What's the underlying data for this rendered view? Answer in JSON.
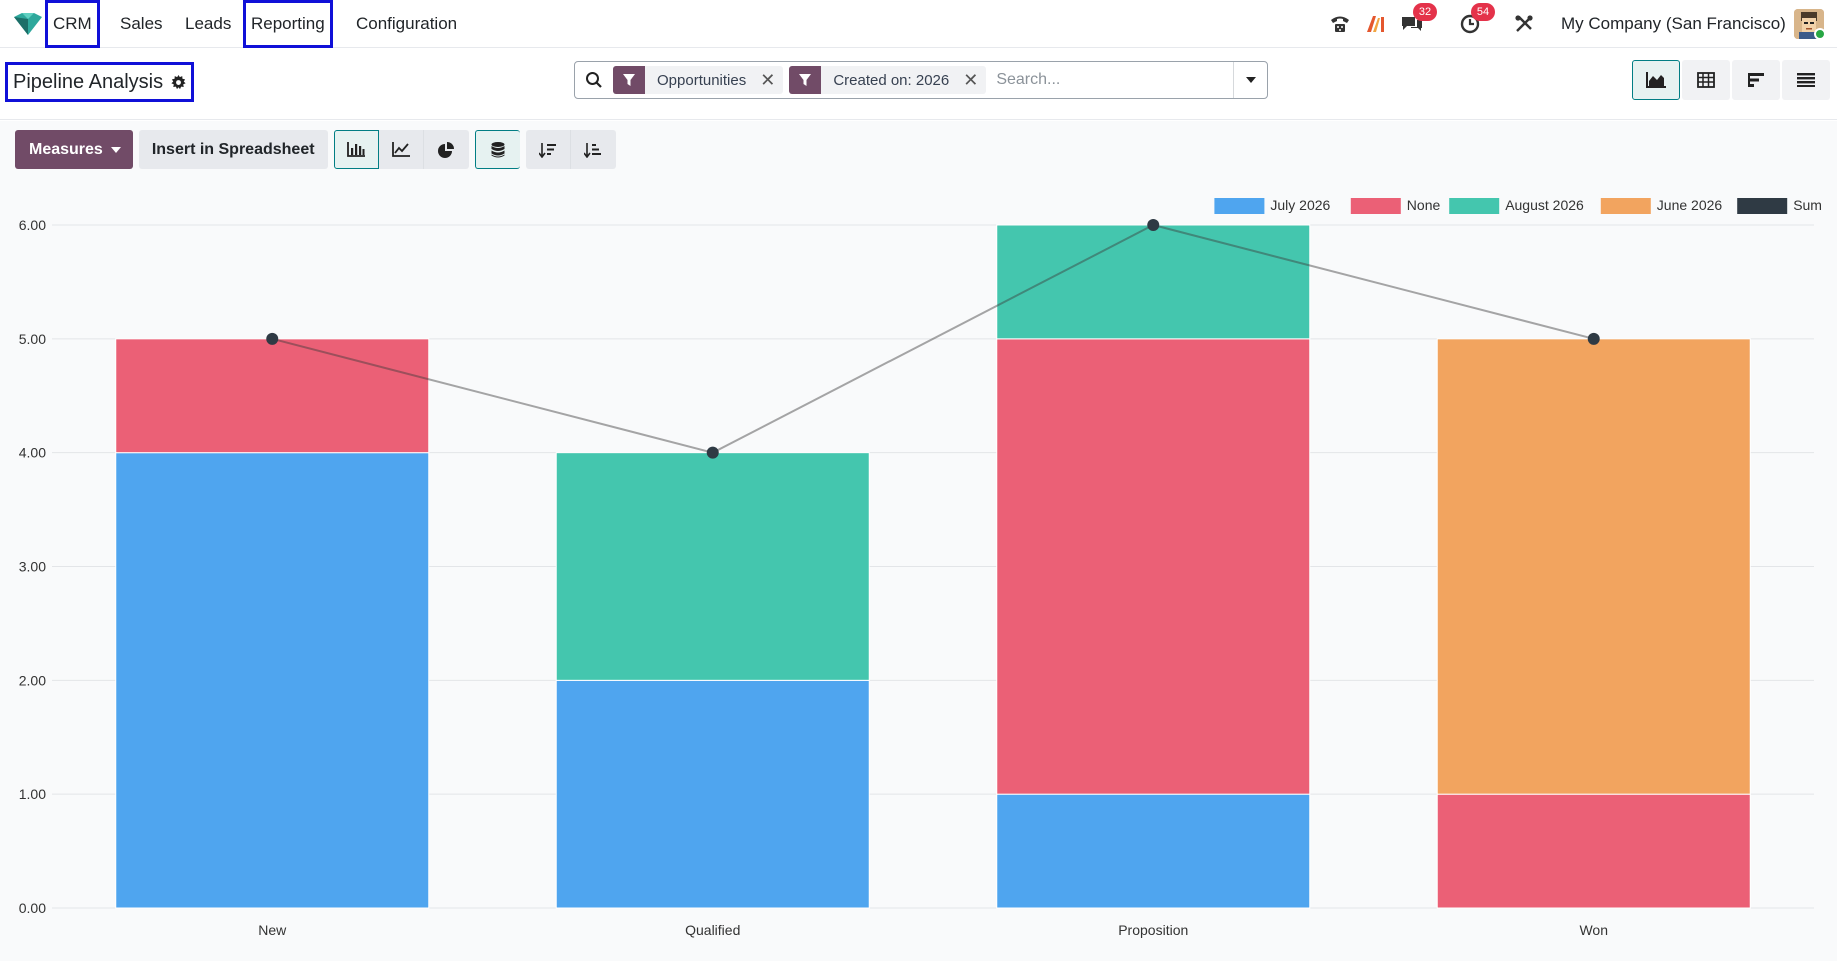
{
  "nav": {
    "app": "CRM",
    "menus": [
      "Sales",
      "Leads",
      "Reporting",
      "Configuration"
    ],
    "messages_count": "32",
    "activities_count": "54",
    "company": "My Company (San Francisco)"
  },
  "control_panel": {
    "title": "Pipeline Analysis",
    "facets": [
      "Opportunities",
      "Created on: 2026"
    ],
    "search_placeholder": "Search..."
  },
  "toolbar": {
    "measures_label": "Measures",
    "insert_label": "Insert in Spreadsheet"
  },
  "colors": {
    "accent": "#714b67",
    "active_border": "#017e84",
    "highlight_box": "#1010d8"
  },
  "chart_data": {
    "type": "bar",
    "stacked": true,
    "categories": [
      "New",
      "Qualified",
      "Proposition",
      "Won"
    ],
    "ylim": [
      0,
      6
    ],
    "yticks": [
      "0.00",
      "1.00",
      "2.00",
      "3.00",
      "4.00",
      "5.00",
      "6.00"
    ],
    "legend_position": "top-right",
    "series": [
      {
        "name": "July 2026",
        "color": "#4fa5ef",
        "values": [
          4,
          2,
          1,
          0
        ]
      },
      {
        "name": "None",
        "color": "#eb6076",
        "values": [
          1,
          0,
          4,
          1
        ]
      },
      {
        "name": "August 2026",
        "color": "#44c6ae",
        "values": [
          0,
          2,
          1,
          0
        ]
      },
      {
        "name": "June 2026",
        "color": "#f2a45f",
        "values": [
          0,
          0,
          0,
          4
        ]
      }
    ],
    "line_series": {
      "name": "Sum",
      "color": "#2f3a44",
      "values": [
        5,
        4,
        6,
        5
      ]
    }
  }
}
